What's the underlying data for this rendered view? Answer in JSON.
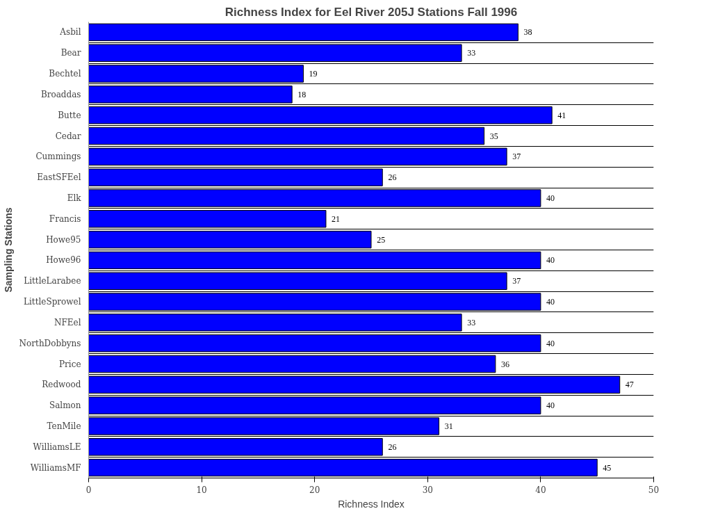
{
  "chart_data": {
    "type": "bar",
    "orientation": "horizontal",
    "title": "Richness Index for Eel River 205J Stations Fall 1996",
    "xlabel": "Richness Index",
    "ylabel": "Sampling Stations",
    "categories": [
      "Asbil",
      "Bear",
      "Bechtel",
      "Broaddas",
      "Butte",
      "Cedar",
      "Cummings",
      "EastSFEel",
      "Elk",
      "Francis",
      "Howe95",
      "Howe96",
      "LittleLarabee",
      "LittleSprowel",
      "NFEel",
      "NorthDobbyns",
      "Price",
      "Redwood",
      "Salmon",
      "TenMile",
      "WilliamsLE",
      "WilliamsMF"
    ],
    "values": [
      38,
      33,
      19,
      18,
      41,
      35,
      37,
      26,
      40,
      21,
      25,
      40,
      37,
      40,
      33,
      40,
      36,
      47,
      40,
      31,
      26,
      45
    ],
    "color": "#0000ff",
    "xlim": [
      0,
      50
    ],
    "xticks": [
      0,
      10,
      20,
      30,
      40,
      50
    ],
    "grid": "y",
    "data_labels": true
  }
}
